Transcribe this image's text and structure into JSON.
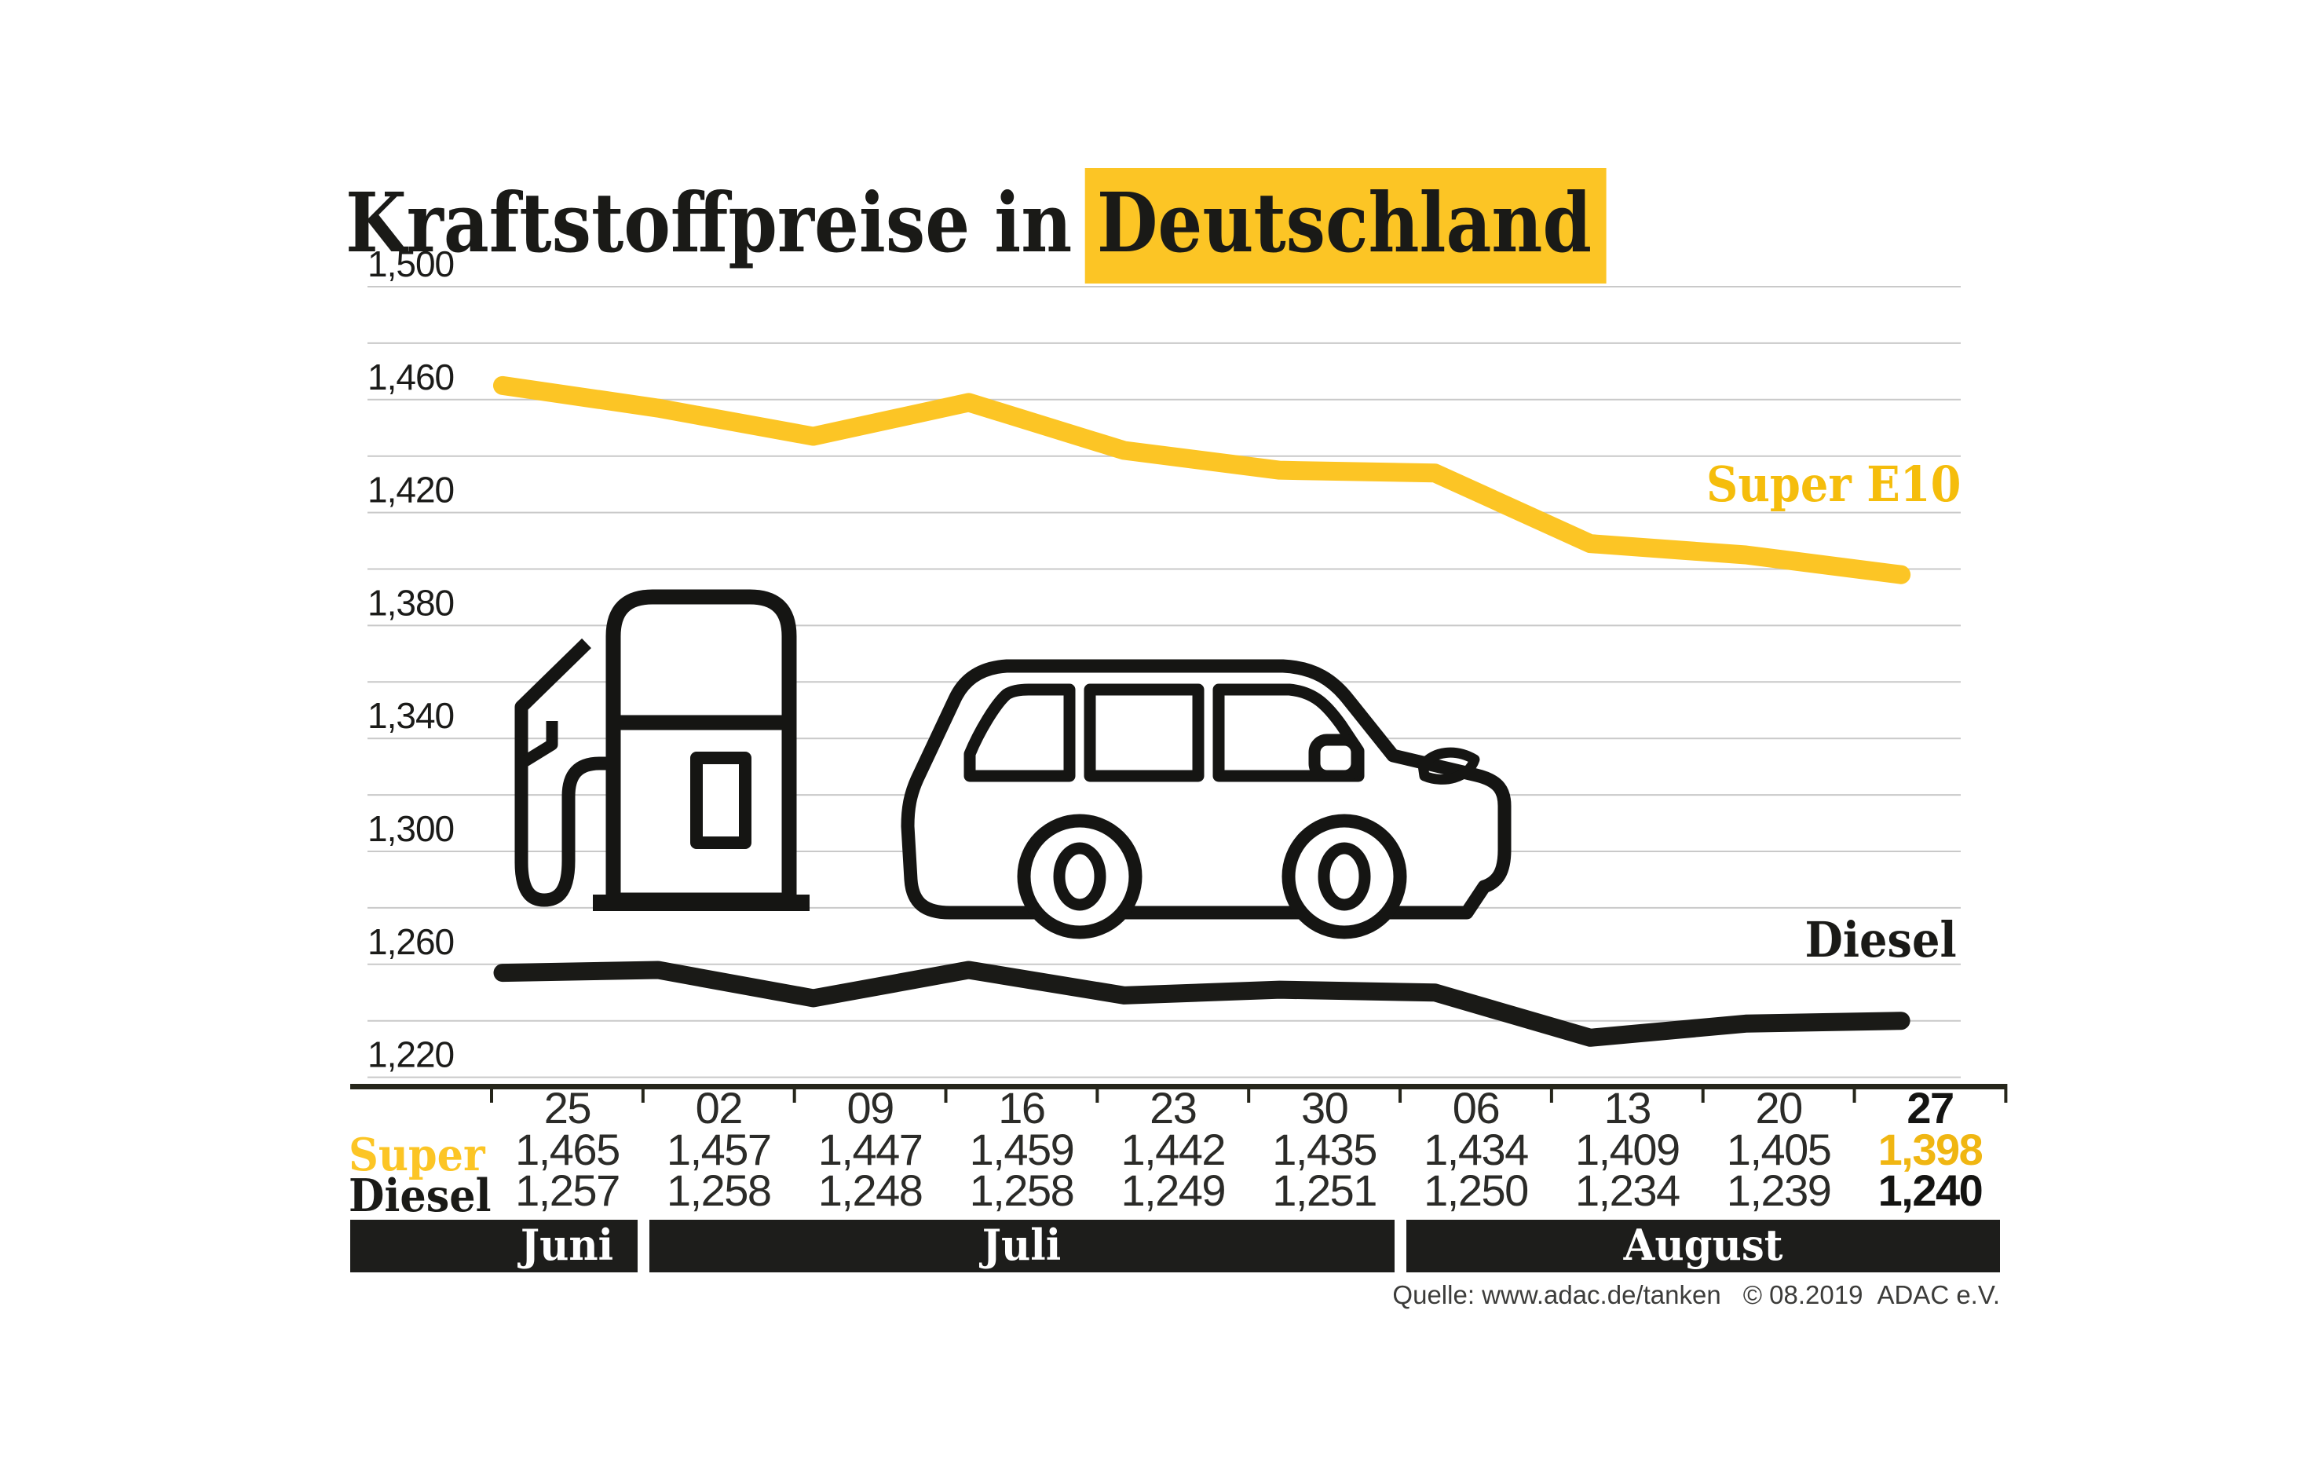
{
  "title": {
    "prefix": "Kraftstoffpreise in",
    "highlight": "Deutschland"
  },
  "chart_data": {
    "type": "line",
    "x": [
      "25",
      "02",
      "09",
      "16",
      "23",
      "30",
      "06",
      "13",
      "20",
      "27"
    ],
    "series": [
      {
        "name": "Super E10",
        "color": "#FCC525",
        "values": [
          1.465,
          1.457,
          1.447,
          1.459,
          1.442,
          1.435,
          1.434,
          1.409,
          1.405,
          1.398
        ]
      },
      {
        "name": "Diesel",
        "color": "#1A1A17",
        "values": [
          1.257,
          1.258,
          1.248,
          1.258,
          1.249,
          1.251,
          1.25,
          1.234,
          1.239,
          1.24
        ]
      }
    ],
    "ylim": [
      1.22,
      1.5
    ],
    "grid_step": 0.02,
    "label_step": 0.04,
    "y_tick_labels": [
      "1,500",
      "1,460",
      "1,420",
      "1,380",
      "1,340",
      "1,300",
      "1,260",
      "1,220"
    ],
    "grid": true,
    "legend_position": "inline-right",
    "months": [
      {
        "label": "Juni",
        "cols": 1
      },
      {
        "label": "Juli",
        "cols": 5
      },
      {
        "label": "August",
        "cols": 4
      }
    ]
  },
  "table": {
    "row_labels": {
      "super": "Super",
      "diesel": "Diesel"
    },
    "dates": [
      "25",
      "02",
      "09",
      "16",
      "23",
      "30",
      "06",
      "13",
      "20",
      "27"
    ],
    "super_values": [
      "1,465",
      "1,457",
      "1,447",
      "1,459",
      "1,442",
      "1,435",
      "1,434",
      "1,409",
      "1,405",
      "1,398"
    ],
    "diesel_values": [
      "1,257",
      "1,258",
      "1,248",
      "1,258",
      "1,249",
      "1,251",
      "1,250",
      "1,234",
      "1,239",
      "1,240"
    ]
  },
  "source": {
    "prefix": "Quelle: www.adac.de/tanken",
    "copyright": "© 08.2019",
    "org": "ADAC e.V."
  },
  "colors": {
    "accent_yellow": "#FCC525",
    "ink": "#1A1A17",
    "band_black": "#1D1D1B",
    "grid_gray": "#C9C9C9",
    "axis_dark": "#26261B",
    "value_text": "#2B2B28"
  }
}
